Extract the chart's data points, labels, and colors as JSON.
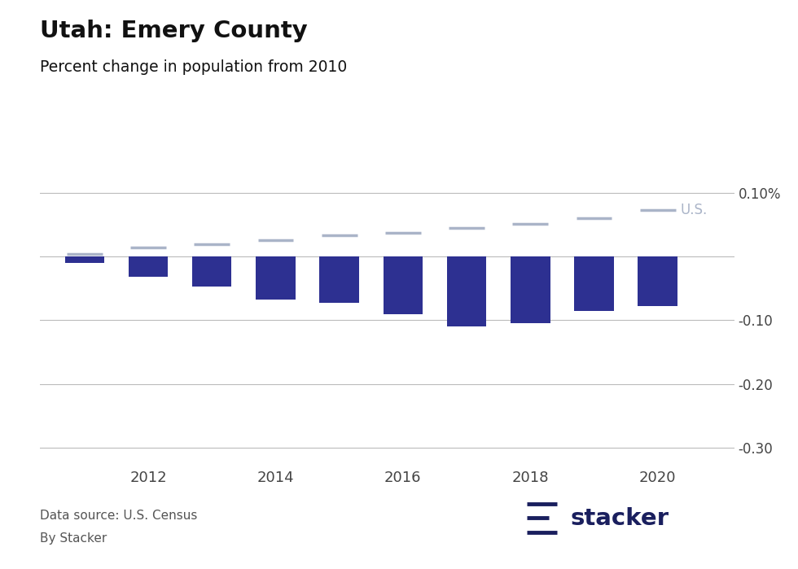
{
  "title": "Utah: Emery County",
  "subtitle": "Percent change in population from 2010",
  "bar_years": [
    2011,
    2012,
    2013,
    2014,
    2015,
    2016,
    2017,
    2018,
    2019,
    2020
  ],
  "bar_values": [
    -0.01,
    -0.032,
    -0.047,
    -0.068,
    -0.073,
    -0.09,
    -0.11,
    -0.105,
    -0.085,
    -0.0779
  ],
  "us_years": [
    2011,
    2012,
    2013,
    2014,
    2015,
    2016,
    2017,
    2018,
    2019,
    2020
  ],
  "us_values": [
    0.004,
    0.014,
    0.02,
    0.026,
    0.033,
    0.038,
    0.045,
    0.052,
    0.06,
    0.073
  ],
  "bar_color": "#2D3091",
  "us_line_color": "#aab4c8",
  "ylim": [
    -0.33,
    0.135
  ],
  "yticks": [
    0.1,
    -0.1,
    -0.2,
    -0.3
  ],
  "ytick_labels": [
    "0.10%",
    "-0.10",
    "-0.20",
    "-0.30"
  ],
  "background_color": "#ffffff",
  "source_text": "Data source: U.S. Census",
  "source_text2": "By Stacker",
  "stacker_color": "#1a1f5e",
  "us_label_color": "#aab4c8"
}
